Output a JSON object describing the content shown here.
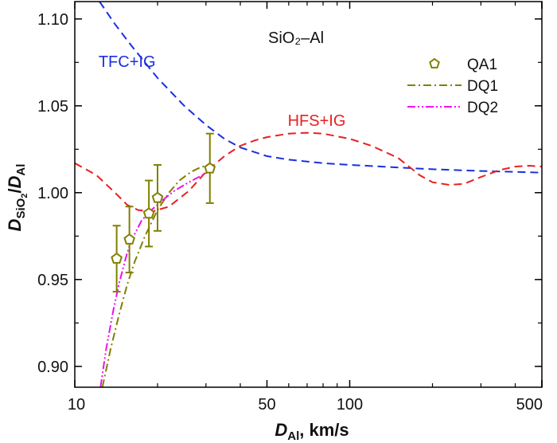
{
  "chart_data": {
    "type": "line",
    "title": "SiO₂–Al",
    "xscale": "log",
    "xlim": [
      10,
      500
    ],
    "ylim": [
      0.888,
      1.11
    ],
    "xticks": [
      10,
      50,
      100,
      500
    ],
    "xtick_labels": [
      "10",
      "50",
      "100",
      "500"
    ],
    "yticks": [
      0.9,
      0.95,
      1.0,
      1.05,
      1.1
    ],
    "ytick_labels": [
      "0.90",
      "0.95",
      "1.00",
      "1.05",
      "1.10"
    ],
    "xlabel": {
      "main": "D",
      "sub": "Al",
      "rest": ", km/s"
    },
    "ylabel": {
      "main1": "D",
      "sub1": "SiO",
      "sub1b": "2",
      "slash": "/",
      "main2": "D",
      "sub2": "Al"
    },
    "grid": false,
    "legend_position": "top-right",
    "series": [
      {
        "name": "QA1",
        "kind": "scatter",
        "marker": "pentagon",
        "color": "#808000",
        "points": [
          {
            "x": 14.2,
            "y": 0.962,
            "yerr": 0.019
          },
          {
            "x": 15.8,
            "y": 0.973,
            "yerr": 0.019
          },
          {
            "x": 18.6,
            "y": 0.988,
            "yerr": 0.019
          },
          {
            "x": 20.0,
            "y": 0.997,
            "yerr": 0.019
          },
          {
            "x": 31.0,
            "y": 1.014,
            "yerr": 0.02
          }
        ]
      },
      {
        "name": "DQ1",
        "kind": "line",
        "dash": "dashdot",
        "color": "#808000",
        "x": [
          12.6,
          13.5,
          14.5,
          15.5,
          16.5,
          18.0,
          20.0,
          22.0,
          24.0,
          26.5,
          29.0,
          31.5
        ],
        "y": [
          0.888,
          0.91,
          0.93,
          0.947,
          0.96,
          0.975,
          0.99,
          1.0,
          1.007,
          1.012,
          1.015,
          1.015
        ]
      },
      {
        "name": "DQ2",
        "kind": "line",
        "dash": "dashdotdot",
        "color": "#ee11ee",
        "x": [
          12.4,
          13.0,
          13.8,
          14.5,
          15.3,
          16.0,
          17.5,
          19.0,
          21.0,
          23.0,
          26.0,
          29.0,
          31.5
        ],
        "y": [
          0.888,
          0.91,
          0.932,
          0.948,
          0.962,
          0.972,
          0.984,
          0.99,
          0.996,
          1.001,
          1.006,
          1.01,
          1.013
        ]
      }
    ],
    "curves": [
      {
        "label": "TFC+IG",
        "color": "#1a2fe0",
        "dash": "dashed",
        "x": [
          12.3,
          14,
          16,
          20,
          25,
          30,
          35,
          40,
          50,
          60,
          80,
          100,
          150,
          200,
          300,
          400,
          500
        ],
        "y": [
          1.11,
          1.097,
          1.085,
          1.066,
          1.05,
          1.039,
          1.031,
          1.026,
          1.021,
          1.019,
          1.017,
          1.016,
          1.0145,
          1.0135,
          1.0125,
          1.012,
          1.0115
        ]
      },
      {
        "label": "HFS+IG",
        "color": "#e82020",
        "dash": "dashed",
        "x": [
          10,
          12,
          14,
          15.5,
          17,
          19,
          22,
          26,
          30,
          35,
          40,
          45,
          50,
          60,
          70,
          80,
          100,
          120,
          150,
          180,
          200,
          230,
          260,
          300,
          350,
          400,
          450,
          500
        ],
        "y": [
          1.017,
          1.01,
          1.0,
          0.993,
          0.99,
          0.989,
          0.992,
          1.001,
          1.012,
          1.021,
          1.027,
          1.03,
          1.032,
          1.034,
          1.0345,
          1.034,
          1.031,
          1.027,
          1.02,
          1.01,
          1.006,
          1.0045,
          1.005,
          1.009,
          1.013,
          1.015,
          1.0155,
          1.015
        ]
      }
    ],
    "annotations": [
      {
        "text": "TFC+IG",
        "color": "#1a2fe0",
        "x": 12.2,
        "y": 1.0725
      },
      {
        "text": "HFS+IG",
        "color": "#e82020",
        "x": 59.5,
        "y": 1.0385
      }
    ],
    "legend": [
      {
        "label": "QA1",
        "symbol": "pentagon",
        "color": "#808000"
      },
      {
        "label": "DQ1",
        "symbol": "dashdot",
        "color": "#808000"
      },
      {
        "label": "DQ2",
        "symbol": "dashdotdot",
        "color": "#ee11ee"
      }
    ]
  }
}
